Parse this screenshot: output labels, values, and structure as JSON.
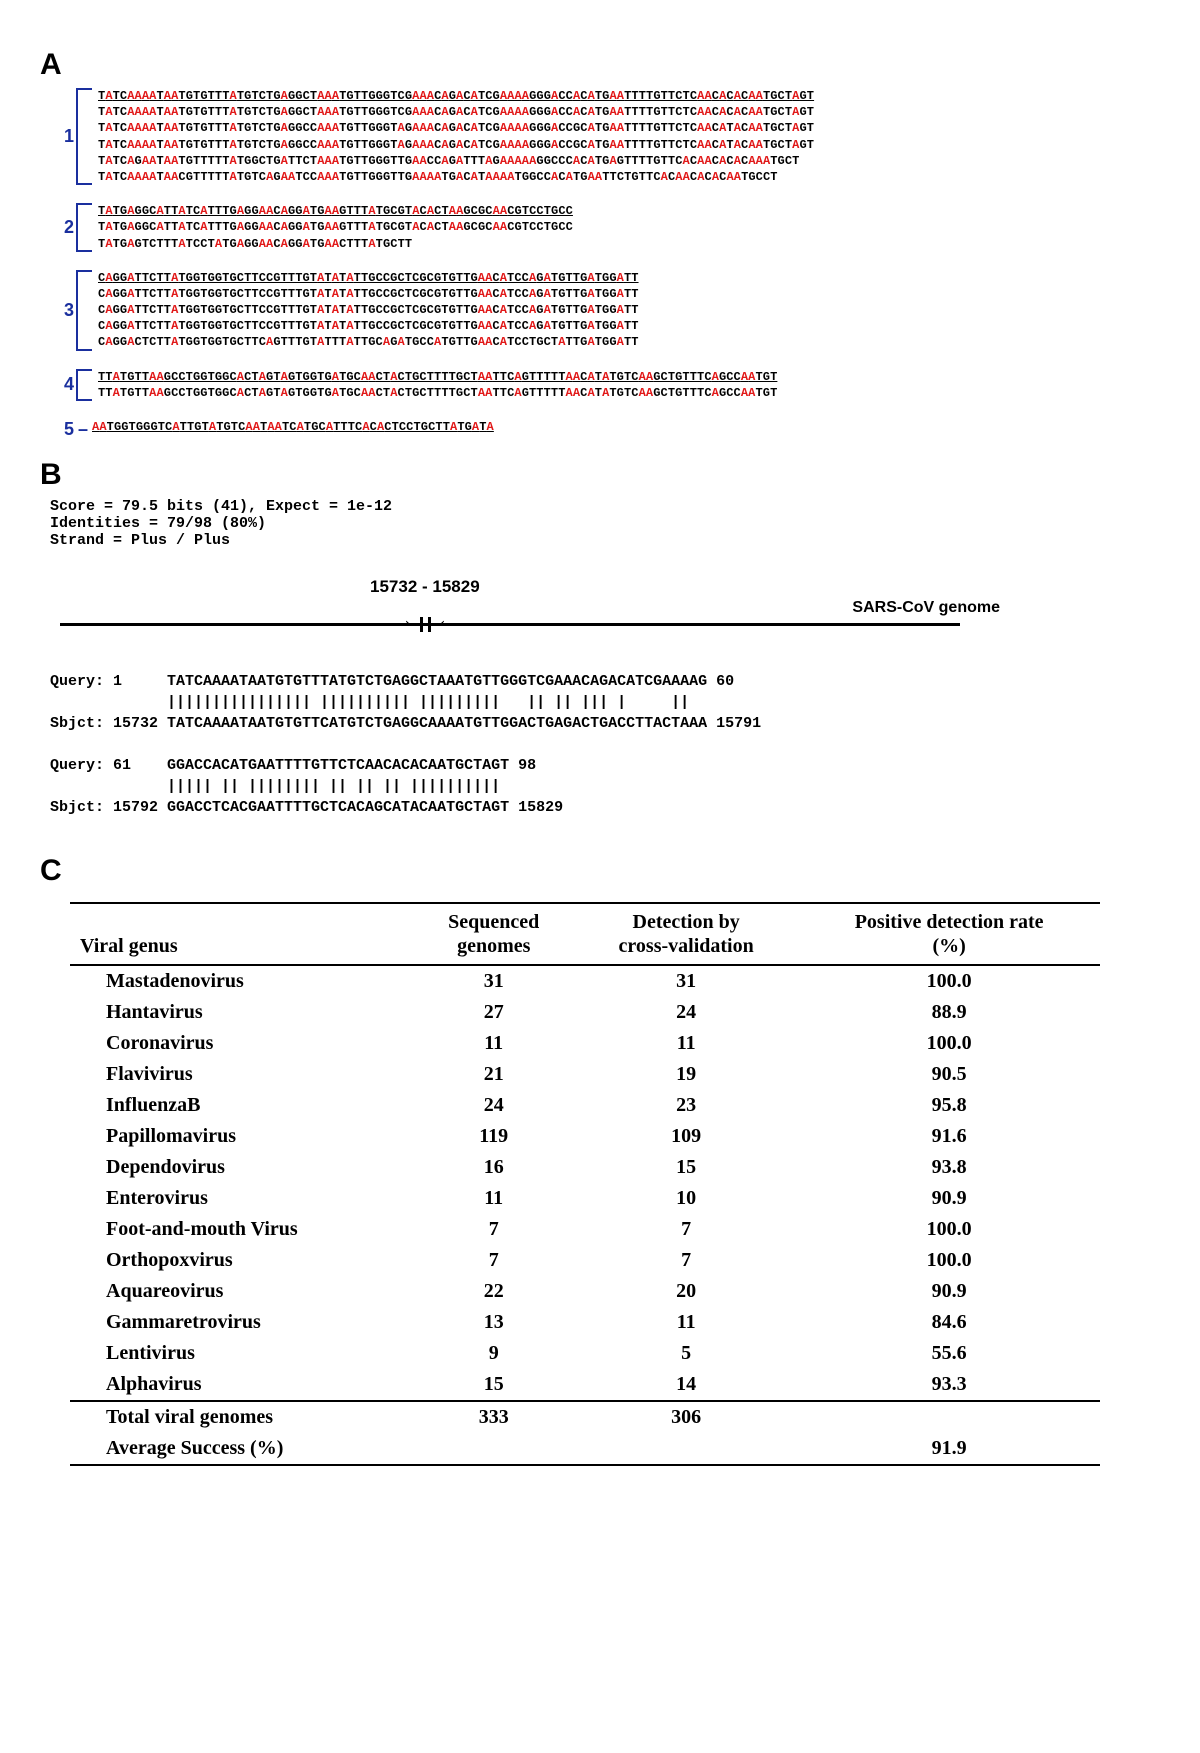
{
  "panelA": {
    "letter": "A",
    "highlightColor": "#e11818",
    "bracketColor": "#1a2f9e",
    "groups": [
      {
        "num": "1",
        "seqs": [
          "TATCAAAATAATGTGTTTATGTCTGAGGCTAAATGTTGGGTCGAAACAGACATCGAAAAGGGACCACATGAATTTTGTTCTCAACACACAATGCTAGT",
          "TATCAAAATAATGTGTTTATGTCTGAGGCTAAATGTTGGGTCGAAACAGACATCGAAAAGGGACCACATGAATTTTGTTCTCAACACACAATGCTAGT",
          "TATCAAAATAATGTGTTTATGTCTGAGGCCAAATGTTGGGTAGAAACAGACATCGAAAAGGGACCGCATGAATTTTGTTCTCAACATACAATGCTAGT",
          "TATCAAAATAATGTGTTTATGTCTGAGGCCAAATGTTGGGTAGAAACAGACATCGAAAAGGGACCGCATGAATTTTGTTCTCAACATACAATGCTAGT",
          "TATCAGAATAATGTTTTTATGGCTGATTCTAAATGTTGGGTTGAACCAGATTTAGAAAAAGGCCCACATGAGTTTTGTTCACAACACACAAATGCT",
          "TATCAAAATAACGTTTTTATGTCAGAATCCAAATGTTGGGTTGAAAATGACATAAAATGGCCACATGAATTCTGTTCACAACACACAATGCCT"
        ]
      },
      {
        "num": "2",
        "seqs": [
          "TATGAGGCATTATCATTTGAGGAACAGGATGAAGTTTATGCGTACACTAAGCGCAACGTCCTGCC",
          "TATGAGGCATTATCATTTGAGGAACAGGATGAAGTTTATGCGTACACTAAGCGCAACGTCCTGCC",
          "TATGAGTCTTTATCCTATGAGGAACAGGATGAACTTTATGCTT"
        ]
      },
      {
        "num": "3",
        "seqs": [
          "CAGGATTCTTATGGTGGTGCTTCCGTTTGTATATATTGCCGCTCGCGTGTTGAACATCCAGATGTTGATGGATT",
          "CAGGATTCTTATGGTGGTGCTTCCGTTTGTATATATTGCCGCTCGCGTGTTGAACATCCAGATGTTGATGGATT",
          "CAGGATTCTTATGGTGGTGCTTCCGTTTGTATATATTGCCGCTCGCGTGTTGAACATCCAGATGTTGATGGATT",
          "CAGGATTCTTATGGTGGTGCTTCCGTTTGTATATATTGCCGCTCGCGTGTTGAACATCCAGATGTTGATGGATT",
          "CAGGACTCTTATGGTGGTGCTTCAGTTTGTATTTATTGCAGATGCCATGTTGAACATCCTGCTATTGATGGATT"
        ]
      },
      {
        "num": "4",
        "seqs": [
          "TTATGTTAAGCCTGGTGGCACTAGTAGTGGTGATGCAACTACTGCTTTTGCTAATTCAGTTTTTAACATATGTCAAGCTGTTTCAGCCAATGT",
          "TTATGTTAAGCCTGGTGGCACTAGTAGTGGTGATGCAACTACTGCTTTTGCTAATTCAGTTTTTAACATATGTCAAGCTGTTTCAGCCAATGT"
        ]
      },
      {
        "num": "5",
        "seqs": [
          "AATGGTGGGTCATTGTATGTCAATAATCATGCATTTCACACTCCTGCTTATGATA"
        ]
      }
    ]
  },
  "panelB": {
    "letter": "B",
    "score": "Score = 79.5 bits (41), Expect = 1e-12",
    "identities": "Identities = 79/98 (80%)",
    "strand": "Strand = Plus / Plus",
    "coord": "15732 - 15829",
    "sarsLabel": "SARS-CoV genome",
    "aln": "Query: 1     TATCAAAATAATGTGTTTATGTCTGAGGCTAAATGTTGGGTCGAAACAGACATCGAAAAG 60\n             |||||||||||||||| |||||||||| |||||||||   || || ||| |     ||\nSbjct: 15732 TATCAAAATAATGTGTTCATGTCTGAGGCAAAATGTTGGACTGAGACTGACCTTACTAAA 15791\n\nQuery: 61    GGACCACATGAATTTTGTTCTCAACACACAATGCTAGT 98\n             ||||| || |||||||| || || || ||||||||||\nSbjct: 15792 GGACCTCACGAATTTTGCTCACAGCATACAATGCTAGT 15829"
  },
  "panelC": {
    "letter": "C",
    "headers": [
      "Viral genus",
      "Sequenced\ngenomes",
      "Detection by\ncross-validation",
      "Positive detection rate\n(%)"
    ],
    "rows": [
      [
        "Mastadenovirus",
        "31",
        "31",
        "100.0"
      ],
      [
        "Hantavirus",
        "27",
        "24",
        "88.9"
      ],
      [
        "Coronavirus",
        "11",
        "11",
        "100.0"
      ],
      [
        "Flavivirus",
        "21",
        "19",
        "90.5"
      ],
      [
        "InfluenzaB",
        "24",
        "23",
        "95.8"
      ],
      [
        "Papillomavirus",
        "119",
        "109",
        "91.6"
      ],
      [
        "Dependovirus",
        "16",
        "15",
        "93.8"
      ],
      [
        "Enterovirus",
        "11",
        "10",
        "90.9"
      ],
      [
        "Foot-and-mouth Virus",
        "7",
        "7",
        "100.0"
      ],
      [
        "Orthopoxvirus",
        "7",
        "7",
        "100.0"
      ],
      [
        "Aquareovirus",
        "22",
        "20",
        "90.9"
      ],
      [
        "Gammaretrovirus",
        "13",
        "11",
        "84.6"
      ],
      [
        "Lentivirus",
        "9",
        "5",
        "55.6"
      ],
      [
        "Alphavirus",
        "15",
        "14",
        "93.3"
      ]
    ],
    "totals": [
      [
        "Total viral genomes",
        "333",
        "306",
        ""
      ],
      [
        "Average Success (%)",
        "",
        "",
        "91.9"
      ]
    ]
  }
}
